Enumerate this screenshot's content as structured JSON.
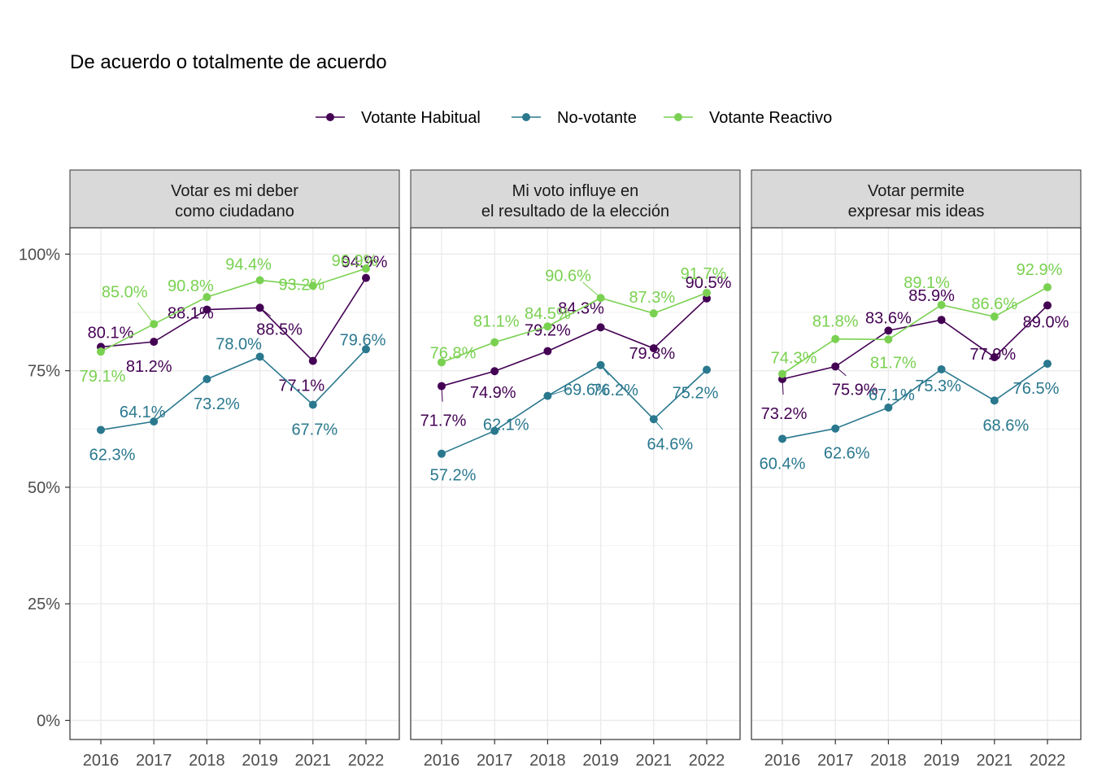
{
  "chart_data": {
    "type": "line",
    "title": "De acuerdo o totalmente de acuerdo",
    "xlabel": "",
    "ylabel": "",
    "x": [
      "2016",
      "2017",
      "2018",
      "2019",
      "2021",
      "2022"
    ],
    "ylim": [
      0,
      100
    ],
    "y_ticks": [
      "0%",
      "25%",
      "50%",
      "75%",
      "100%"
    ],
    "grid": true,
    "legend_position": "top",
    "legend": [
      {
        "name": "Votante Habitual",
        "color": "#440154"
      },
      {
        "name": "No-votante",
        "color": "#2A788E"
      },
      {
        "name": "Votante Reactivo",
        "color": "#7AD151"
      }
    ],
    "panels": [
      {
        "strip": [
          "Votar es mi deber",
          "como ciudadano"
        ],
        "series": [
          {
            "name": "Votante Habitual",
            "values": [
              80.1,
              81.2,
              88.1,
              88.5,
              77.1,
              94.9
            ],
            "labels": [
              "80.1%",
              "81.2%",
              "88.1%",
              "88.5%",
              "77.1%",
              "94.9%"
            ]
          },
          {
            "name": "No-votante",
            "values": [
              62.3,
              64.1,
              73.2,
              78.0,
              67.7,
              79.6
            ],
            "labels": [
              "62.3%",
              "64.1%",
              "73.2%",
              "78.0%",
              "67.7%",
              "79.6%"
            ]
          },
          {
            "name": "Votante Reactivo",
            "values": [
              79.1,
              85.0,
              90.8,
              94.4,
              93.2,
              96.9
            ],
            "labels": [
              "79.1%",
              "85.0%",
              "90.8%",
              "94.4%",
              "93.2%",
              "96.9%"
            ]
          }
        ]
      },
      {
        "strip": [
          "Mi voto influye en",
          "el resultado de la elección"
        ],
        "series": [
          {
            "name": "Votante Habitual",
            "values": [
              71.7,
              74.9,
              79.2,
              84.3,
              79.8,
              90.5
            ],
            "labels": [
              "71.7%",
              "74.9%",
              "79.2%",
              "84.3%",
              "79.8%",
              "90.5%"
            ]
          },
          {
            "name": "No-votante",
            "values": [
              57.2,
              62.1,
              69.6,
              76.2,
              64.6,
              75.2
            ],
            "labels": [
              "57.2%",
              "62.1%",
              "69.6%",
              "76.2%",
              "64.6%",
              "75.2%"
            ]
          },
          {
            "name": "Votante Reactivo",
            "values": [
              76.8,
              81.1,
              84.5,
              90.6,
              87.3,
              91.7
            ],
            "labels": [
              "76.8%",
              "81.1%",
              "84.5%",
              "90.6%",
              "87.3%",
              "91.7%"
            ]
          }
        ]
      },
      {
        "strip": [
          "Votar permite",
          "expresar mis ideas"
        ],
        "series": [
          {
            "name": "Votante Habitual",
            "values": [
              73.2,
              75.9,
              83.6,
              85.9,
              77.9,
              89.0
            ],
            "labels": [
              "73.2%",
              "75.9%",
              "83.6%",
              "85.9%",
              "77.9%",
              "89.0%"
            ]
          },
          {
            "name": "No-votante",
            "values": [
              60.4,
              62.6,
              67.1,
              75.3,
              68.6,
              76.5
            ],
            "labels": [
              "60.4%",
              "62.6%",
              "67.1%",
              "75.3%",
              "68.6%",
              "76.5%"
            ]
          },
          {
            "name": "Votante Reactivo",
            "values": [
              74.3,
              81.8,
              81.7,
              89.1,
              86.6,
              92.9
            ],
            "labels": [
              "74.3%",
              "81.8%",
              "81.7%",
              "89.1%",
              "86.6%",
              "92.9%"
            ]
          }
        ]
      }
    ]
  }
}
